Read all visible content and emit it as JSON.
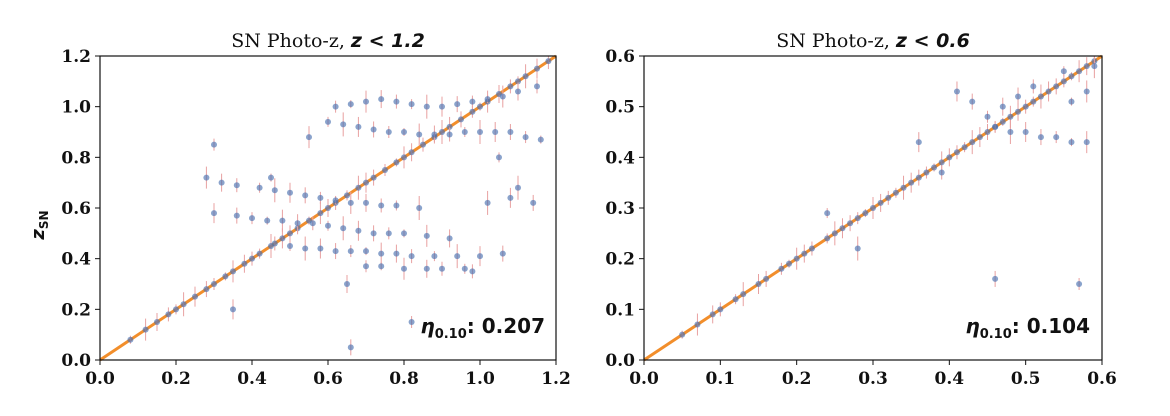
{
  "chart_data": [
    {
      "type": "scatter",
      "title": "SN Photo-z, z < 1.2",
      "title_prefix": "SN Photo-z, ",
      "title_math": "z < 1.2",
      "ylabel_main": "z",
      "ylabel_sub": "SN",
      "xlim": [
        0.0,
        1.2
      ],
      "ylim": [
        0.0,
        1.2
      ],
      "xticks": [
        "0.0",
        "0.2",
        "0.4",
        "0.6",
        "0.8",
        "1.0",
        "1.2"
      ],
      "yticks": [
        "0.0",
        "0.2",
        "0.4",
        "0.6",
        "0.8",
        "1.0",
        "1.2"
      ],
      "tick_values": [
        0.0,
        0.2,
        0.4,
        0.6,
        0.8,
        1.0,
        1.2
      ],
      "annotation_symbol": "η",
      "annotation_sub": "0.10",
      "annotation_value": ": 0.207",
      "grid": false,
      "reference_line": {
        "x": [
          0.0,
          1.2
        ],
        "y": [
          0.0,
          1.2
        ],
        "color": "#f28e2b"
      },
      "point_color": "#4c72b0",
      "errorbar_color": "#e8a0a0",
      "points": {
        "x": [
          0.08,
          0.12,
          0.15,
          0.18,
          0.2,
          0.22,
          0.25,
          0.28,
          0.3,
          0.33,
          0.35,
          0.38,
          0.4,
          0.42,
          0.45,
          0.48,
          0.5,
          0.52,
          0.55,
          0.58,
          0.6,
          0.62,
          0.65,
          0.68,
          0.7,
          0.72,
          0.75,
          0.78,
          0.8,
          0.82,
          0.85,
          0.88,
          0.9,
          0.92,
          0.95,
          0.98,
          1.0,
          1.02,
          1.05,
          1.08,
          1.1,
          1.12,
          1.15,
          1.18,
          0.62,
          0.66,
          0.7,
          0.74,
          0.78,
          0.82,
          0.86,
          0.9,
          0.94,
          0.98,
          1.02,
          1.06,
          1.1,
          1.15,
          0.6,
          0.64,
          0.68,
          0.72,
          0.76,
          0.8,
          0.84,
          0.88,
          0.92,
          0.96,
          1.0,
          1.04,
          1.08,
          1.12,
          1.16,
          0.28,
          0.32,
          0.36,
          0.42,
          0.46,
          0.5,
          0.54,
          0.58,
          0.62,
          0.66,
          0.7,
          0.74,
          0.78,
          0.84,
          0.3,
          0.36,
          0.4,
          0.44,
          0.48,
          0.52,
          0.56,
          0.6,
          0.64,
          0.68,
          0.72,
          0.76,
          0.8,
          0.86,
          0.92,
          0.46,
          0.5,
          0.54,
          0.58,
          0.62,
          0.66,
          0.7,
          0.74,
          0.78,
          0.82,
          0.88,
          0.94,
          1.0,
          1.06,
          0.7,
          0.74,
          0.8,
          0.86,
          0.9,
          0.96,
          1.02,
          1.08,
          1.14,
          0.3,
          0.45,
          0.55,
          0.65,
          0.98,
          1.05,
          1.1,
          0.35,
          0.66,
          0.82
        ],
        "y": [
          0.08,
          0.12,
          0.15,
          0.18,
          0.2,
          0.22,
          0.25,
          0.28,
          0.3,
          0.33,
          0.35,
          0.38,
          0.4,
          0.42,
          0.45,
          0.48,
          0.5,
          0.52,
          0.55,
          0.58,
          0.6,
          0.62,
          0.65,
          0.68,
          0.7,
          0.72,
          0.75,
          0.78,
          0.8,
          0.82,
          0.85,
          0.88,
          0.9,
          0.92,
          0.95,
          0.98,
          1.0,
          1.02,
          1.05,
          1.08,
          1.1,
          1.12,
          1.15,
          1.18,
          1.0,
          1.01,
          1.02,
          1.03,
          1.02,
          1.01,
          1.0,
          1.0,
          1.01,
          1.02,
          1.03,
          1.04,
          1.06,
          1.08,
          0.94,
          0.93,
          0.92,
          0.91,
          0.9,
          0.9,
          0.89,
          0.89,
          0.89,
          0.9,
          0.9,
          0.9,
          0.9,
          0.88,
          0.87,
          0.72,
          0.7,
          0.69,
          0.68,
          0.67,
          0.66,
          0.65,
          0.64,
          0.63,
          0.62,
          0.62,
          0.61,
          0.61,
          0.6,
          0.58,
          0.57,
          0.56,
          0.55,
          0.55,
          0.54,
          0.54,
          0.53,
          0.52,
          0.51,
          0.5,
          0.5,
          0.5,
          0.49,
          0.48,
          0.46,
          0.45,
          0.44,
          0.44,
          0.43,
          0.43,
          0.43,
          0.42,
          0.42,
          0.41,
          0.41,
          0.41,
          0.41,
          0.42,
          0.37,
          0.37,
          0.36,
          0.36,
          0.36,
          0.36,
          0.62,
          0.64,
          0.62,
          0.85,
          0.72,
          0.88,
          0.3,
          0.35,
          0.8,
          0.68,
          0.2,
          0.05,
          0.15
        ]
      }
    },
    {
      "type": "scatter",
      "title": "SN Photo-z, z < 0.6",
      "title_prefix": "SN Photo-z, ",
      "title_math": "z < 0.6",
      "xlim": [
        0.0,
        0.6
      ],
      "ylim": [
        0.0,
        0.6
      ],
      "xticks": [
        "0.0",
        "0.1",
        "0.2",
        "0.3",
        "0.4",
        "0.5",
        "0.6"
      ],
      "yticks": [
        "0.0",
        "0.1",
        "0.2",
        "0.3",
        "0.4",
        "0.5",
        "0.6"
      ],
      "tick_values": [
        0.0,
        0.1,
        0.2,
        0.3,
        0.4,
        0.5,
        0.6
      ],
      "annotation_symbol": "η",
      "annotation_sub": "0.10",
      "annotation_value": ": 0.104",
      "grid": false,
      "reference_line": {
        "x": [
          0.0,
          0.6
        ],
        "y": [
          0.0,
          0.6
        ],
        "color": "#f28e2b"
      },
      "point_color": "#4c72b0",
      "errorbar_color": "#e8a0a0",
      "points": {
        "x": [
          0.05,
          0.07,
          0.09,
          0.1,
          0.12,
          0.13,
          0.15,
          0.16,
          0.18,
          0.19,
          0.2,
          0.21,
          0.22,
          0.24,
          0.25,
          0.26,
          0.27,
          0.28,
          0.29,
          0.3,
          0.31,
          0.32,
          0.33,
          0.34,
          0.35,
          0.36,
          0.37,
          0.38,
          0.39,
          0.4,
          0.41,
          0.42,
          0.43,
          0.44,
          0.45,
          0.46,
          0.47,
          0.48,
          0.49,
          0.5,
          0.51,
          0.52,
          0.53,
          0.54,
          0.55,
          0.56,
          0.57,
          0.58,
          0.59,
          0.46,
          0.48,
          0.5,
          0.52,
          0.54,
          0.56,
          0.58,
          0.47,
          0.51,
          0.55,
          0.59,
          0.41,
          0.43,
          0.45,
          0.56,
          0.58,
          0.49,
          0.39,
          0.24,
          0.28,
          0.36,
          0.46,
          0.57
        ],
        "y": [
          0.05,
          0.07,
          0.09,
          0.1,
          0.12,
          0.13,
          0.15,
          0.16,
          0.18,
          0.19,
          0.2,
          0.21,
          0.22,
          0.24,
          0.25,
          0.26,
          0.27,
          0.28,
          0.29,
          0.3,
          0.31,
          0.32,
          0.33,
          0.34,
          0.35,
          0.36,
          0.37,
          0.38,
          0.39,
          0.4,
          0.41,
          0.42,
          0.43,
          0.44,
          0.45,
          0.46,
          0.47,
          0.48,
          0.49,
          0.5,
          0.51,
          0.52,
          0.53,
          0.54,
          0.55,
          0.56,
          0.57,
          0.58,
          0.59,
          0.46,
          0.45,
          0.45,
          0.44,
          0.44,
          0.43,
          0.43,
          0.5,
          0.54,
          0.57,
          0.58,
          0.53,
          0.51,
          0.48,
          0.51,
          0.53,
          0.52,
          0.37,
          0.29,
          0.22,
          0.43,
          0.16,
          0.15
        ]
      }
    }
  ]
}
